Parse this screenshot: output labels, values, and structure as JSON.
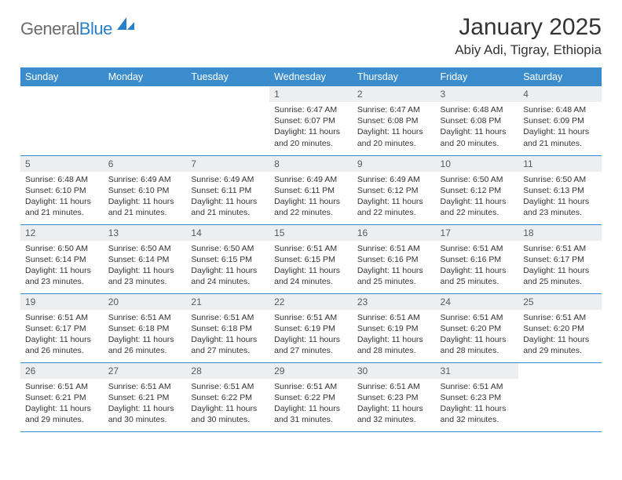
{
  "logo": {
    "text_part1": "General",
    "text_part2": "Blue",
    "shape_color": "#2a7fc9"
  },
  "header": {
    "month_title": "January 2025",
    "location": "Abiy Adi, Tigray, Ethiopia"
  },
  "colors": {
    "header_bg": "#3a8ccc",
    "header_fg": "#ffffff",
    "daynum_bg": "#eceef0",
    "border": "#3a8ccc",
    "text": "#333333"
  },
  "weekdays": [
    "Sunday",
    "Monday",
    "Tuesday",
    "Wednesday",
    "Thursday",
    "Friday",
    "Saturday"
  ],
  "weeks": [
    [
      {
        "empty": true
      },
      {
        "empty": true
      },
      {
        "empty": true
      },
      {
        "n": "1",
        "sr": "6:47 AM",
        "ss": "6:07 PM",
        "dl": "11 hours and 20 minutes."
      },
      {
        "n": "2",
        "sr": "6:47 AM",
        "ss": "6:08 PM",
        "dl": "11 hours and 20 minutes."
      },
      {
        "n": "3",
        "sr": "6:48 AM",
        "ss": "6:08 PM",
        "dl": "11 hours and 20 minutes."
      },
      {
        "n": "4",
        "sr": "6:48 AM",
        "ss": "6:09 PM",
        "dl": "11 hours and 21 minutes."
      }
    ],
    [
      {
        "n": "5",
        "sr": "6:48 AM",
        "ss": "6:10 PM",
        "dl": "11 hours and 21 minutes."
      },
      {
        "n": "6",
        "sr": "6:49 AM",
        "ss": "6:10 PM",
        "dl": "11 hours and 21 minutes."
      },
      {
        "n": "7",
        "sr": "6:49 AM",
        "ss": "6:11 PM",
        "dl": "11 hours and 21 minutes."
      },
      {
        "n": "8",
        "sr": "6:49 AM",
        "ss": "6:11 PM",
        "dl": "11 hours and 22 minutes."
      },
      {
        "n": "9",
        "sr": "6:49 AM",
        "ss": "6:12 PM",
        "dl": "11 hours and 22 minutes."
      },
      {
        "n": "10",
        "sr": "6:50 AM",
        "ss": "6:12 PM",
        "dl": "11 hours and 22 minutes."
      },
      {
        "n": "11",
        "sr": "6:50 AM",
        "ss": "6:13 PM",
        "dl": "11 hours and 23 minutes."
      }
    ],
    [
      {
        "n": "12",
        "sr": "6:50 AM",
        "ss": "6:14 PM",
        "dl": "11 hours and 23 minutes."
      },
      {
        "n": "13",
        "sr": "6:50 AM",
        "ss": "6:14 PM",
        "dl": "11 hours and 23 minutes."
      },
      {
        "n": "14",
        "sr": "6:50 AM",
        "ss": "6:15 PM",
        "dl": "11 hours and 24 minutes."
      },
      {
        "n": "15",
        "sr": "6:51 AM",
        "ss": "6:15 PM",
        "dl": "11 hours and 24 minutes."
      },
      {
        "n": "16",
        "sr": "6:51 AM",
        "ss": "6:16 PM",
        "dl": "11 hours and 25 minutes."
      },
      {
        "n": "17",
        "sr": "6:51 AM",
        "ss": "6:16 PM",
        "dl": "11 hours and 25 minutes."
      },
      {
        "n": "18",
        "sr": "6:51 AM",
        "ss": "6:17 PM",
        "dl": "11 hours and 25 minutes."
      }
    ],
    [
      {
        "n": "19",
        "sr": "6:51 AM",
        "ss": "6:17 PM",
        "dl": "11 hours and 26 minutes."
      },
      {
        "n": "20",
        "sr": "6:51 AM",
        "ss": "6:18 PM",
        "dl": "11 hours and 26 minutes."
      },
      {
        "n": "21",
        "sr": "6:51 AM",
        "ss": "6:18 PM",
        "dl": "11 hours and 27 minutes."
      },
      {
        "n": "22",
        "sr": "6:51 AM",
        "ss": "6:19 PM",
        "dl": "11 hours and 27 minutes."
      },
      {
        "n": "23",
        "sr": "6:51 AM",
        "ss": "6:19 PM",
        "dl": "11 hours and 28 minutes."
      },
      {
        "n": "24",
        "sr": "6:51 AM",
        "ss": "6:20 PM",
        "dl": "11 hours and 28 minutes."
      },
      {
        "n": "25",
        "sr": "6:51 AM",
        "ss": "6:20 PM",
        "dl": "11 hours and 29 minutes."
      }
    ],
    [
      {
        "n": "26",
        "sr": "6:51 AM",
        "ss": "6:21 PM",
        "dl": "11 hours and 29 minutes."
      },
      {
        "n": "27",
        "sr": "6:51 AM",
        "ss": "6:21 PM",
        "dl": "11 hours and 30 minutes."
      },
      {
        "n": "28",
        "sr": "6:51 AM",
        "ss": "6:22 PM",
        "dl": "11 hours and 30 minutes."
      },
      {
        "n": "29",
        "sr": "6:51 AM",
        "ss": "6:22 PM",
        "dl": "11 hours and 31 minutes."
      },
      {
        "n": "30",
        "sr": "6:51 AM",
        "ss": "6:23 PM",
        "dl": "11 hours and 32 minutes."
      },
      {
        "n": "31",
        "sr": "6:51 AM",
        "ss": "6:23 PM",
        "dl": "11 hours and 32 minutes."
      },
      {
        "empty": true
      }
    ]
  ],
  "labels": {
    "sunrise": "Sunrise:",
    "sunset": "Sunset:",
    "daylight": "Daylight:"
  }
}
